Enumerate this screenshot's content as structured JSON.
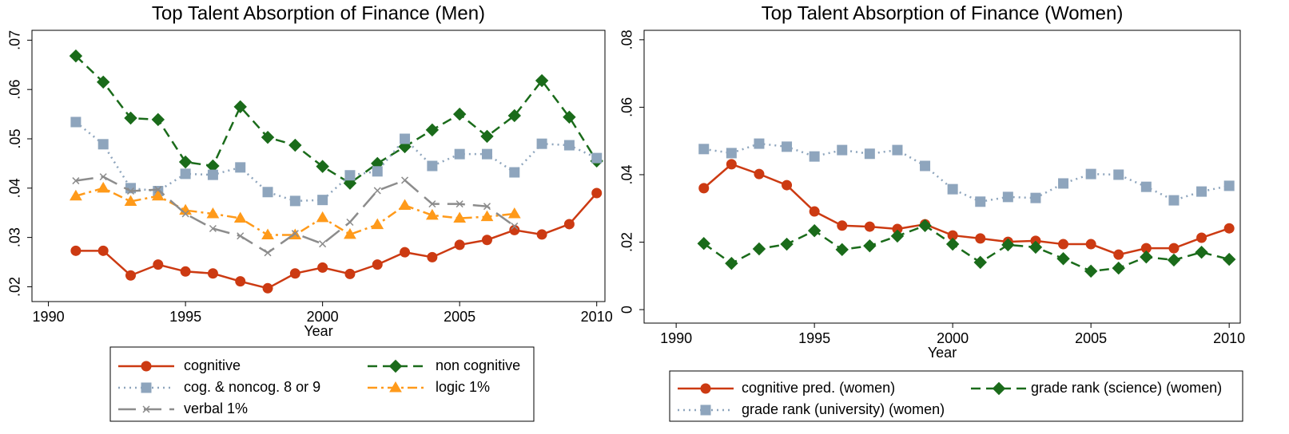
{
  "chart_data": [
    {
      "type": "line",
      "title": "Top Talent Absorption of Finance (Men)",
      "xlabel": "Year",
      "x": [
        1991,
        1992,
        1993,
        1994,
        1995,
        1996,
        1997,
        1998,
        1999,
        2000,
        2001,
        2002,
        2003,
        2004,
        2005,
        2006,
        2007,
        2008,
        2009,
        2010
      ],
      "xlim": [
        1989.4,
        2010.3
      ],
      "xticks": [
        1990,
        1995,
        2000,
        2005,
        2010
      ],
      "ylim": [
        0.017,
        0.072
      ],
      "yticks": [
        {
          "value": 0.02,
          "label": ".02"
        },
        {
          "value": 0.03,
          "label": ".03"
        },
        {
          "value": 0.04,
          "label": ".04"
        },
        {
          "value": 0.05,
          "label": ".05"
        },
        {
          "value": 0.06,
          "label": ".06"
        },
        {
          "value": 0.07,
          "label": ".07"
        }
      ],
      "legend": "bottom",
      "series": [
        {
          "name": "cognitive",
          "color": "#cc3a12",
          "marker": "circle",
          "dash": "solid",
          "values": [
            0.0273,
            0.0273,
            0.0223,
            0.0245,
            0.0231,
            0.0227,
            0.0211,
            0.0197,
            0.0227,
            0.0239,
            0.0226,
            0.0245,
            0.027,
            0.026,
            0.0285,
            0.0295,
            0.0315,
            0.0306,
            0.0327,
            0.039
          ]
        },
        {
          "name": "non cognitive",
          "color": "#1a6b1a",
          "marker": "diamond",
          "dash": "dashed",
          "values": [
            0.0668,
            0.0615,
            0.0542,
            0.0539,
            0.0453,
            0.0445,
            0.0565,
            0.0503,
            0.0487,
            0.0444,
            0.041,
            0.045,
            0.0484,
            0.0518,
            0.055,
            0.0505,
            0.0547,
            0.0618,
            0.0544,
            0.0455
          ]
        },
        {
          "name": "cog. & noncog. 8 or 9",
          "color": "#8ea5bd",
          "marker": "square",
          "dash": "dotted",
          "values": [
            0.0534,
            0.0489,
            0.04,
            0.0394,
            0.0429,
            0.0427,
            0.0442,
            0.0392,
            0.0374,
            0.0376,
            0.0426,
            0.0434,
            0.05,
            0.0445,
            0.0469,
            0.0469,
            0.0432,
            0.049,
            0.0487,
            0.0461
          ]
        },
        {
          "name": "logic 1%",
          "color": "#ff9a1a",
          "marker": "triangle",
          "dash": "dashdot",
          "values": [
            0.0384,
            0.04,
            0.0373,
            0.0384,
            0.0355,
            0.0348,
            0.0339,
            0.0305,
            0.0305,
            0.034,
            0.0306,
            0.0326,
            0.0365,
            0.0345,
            0.0339,
            0.0342,
            0.0348,
            null,
            null,
            null
          ]
        },
        {
          "name": "verbal 1%",
          "color": "#8c8c8c",
          "marker": "x",
          "dash": "longdash",
          "values": [
            0.0415,
            0.0423,
            0.0394,
            0.0397,
            0.0348,
            0.0318,
            0.0303,
            0.0269,
            0.0308,
            0.0287,
            0.0331,
            0.0395,
            0.0416,
            0.0368,
            0.0368,
            0.0363,
            0.0323,
            null,
            null,
            null
          ]
        }
      ]
    },
    {
      "type": "line",
      "title": "Top Talent Absorption of Finance (Women)",
      "xlabel": "Year",
      "x": [
        1991,
        1992,
        1993,
        1994,
        1995,
        1996,
        1997,
        1998,
        1999,
        2000,
        2001,
        2002,
        2003,
        2004,
        2005,
        2006,
        2007,
        2008,
        2009,
        2010
      ],
      "xlim": [
        1988.84,
        2010.4
      ],
      "xticks": [
        1990,
        1995,
        2000,
        2005,
        2010
      ],
      "ylim": [
        -0.004,
        0.0828
      ],
      "yticks": [
        0,
        {
          "value": 0.02,
          "label": ".02"
        },
        {
          "value": 0.04,
          "label": ".04"
        },
        {
          "value": 0.06,
          "label": ".06"
        },
        {
          "value": 0.08,
          "label": ".08"
        }
      ],
      "legend": "bottom",
      "series": [
        {
          "name": "cognitive pred. (women)",
          "color": "#cc3a12",
          "marker": "circle",
          "dash": "solid",
          "values": [
            0.036,
            0.0431,
            0.0402,
            0.0369,
            0.0291,
            0.0249,
            0.0246,
            0.0239,
            0.0253,
            0.022,
            0.0211,
            0.0201,
            0.0204,
            0.0194,
            0.0194,
            0.0163,
            0.0182,
            0.0182,
            0.0213,
            0.0241
          ]
        },
        {
          "name": "grade rank (science) (women)",
          "color": "#1a6b1a",
          "marker": "diamond",
          "dash": "dashed",
          "values": [
            0.0196,
            0.0137,
            0.018,
            0.0194,
            0.0234,
            0.0178,
            0.0189,
            0.0218,
            0.0249,
            0.0194,
            0.014,
            0.0192,
            0.0185,
            0.0151,
            0.0114,
            0.0123,
            0.0156,
            0.0147,
            0.017,
            0.0149
          ]
        },
        {
          "name": "grade rank (university) (women)",
          "color": "#8ea5bd",
          "marker": "square",
          "dash": "dotted",
          "values": [
            0.0476,
            0.0464,
            0.0492,
            0.0483,
            0.0454,
            0.0473,
            0.0462,
            0.0473,
            0.0426,
            0.0357,
            0.032,
            0.0334,
            0.0331,
            0.0374,
            0.0402,
            0.04,
            0.0364,
            0.0324,
            0.035,
            0.0367
          ]
        }
      ]
    }
  ]
}
